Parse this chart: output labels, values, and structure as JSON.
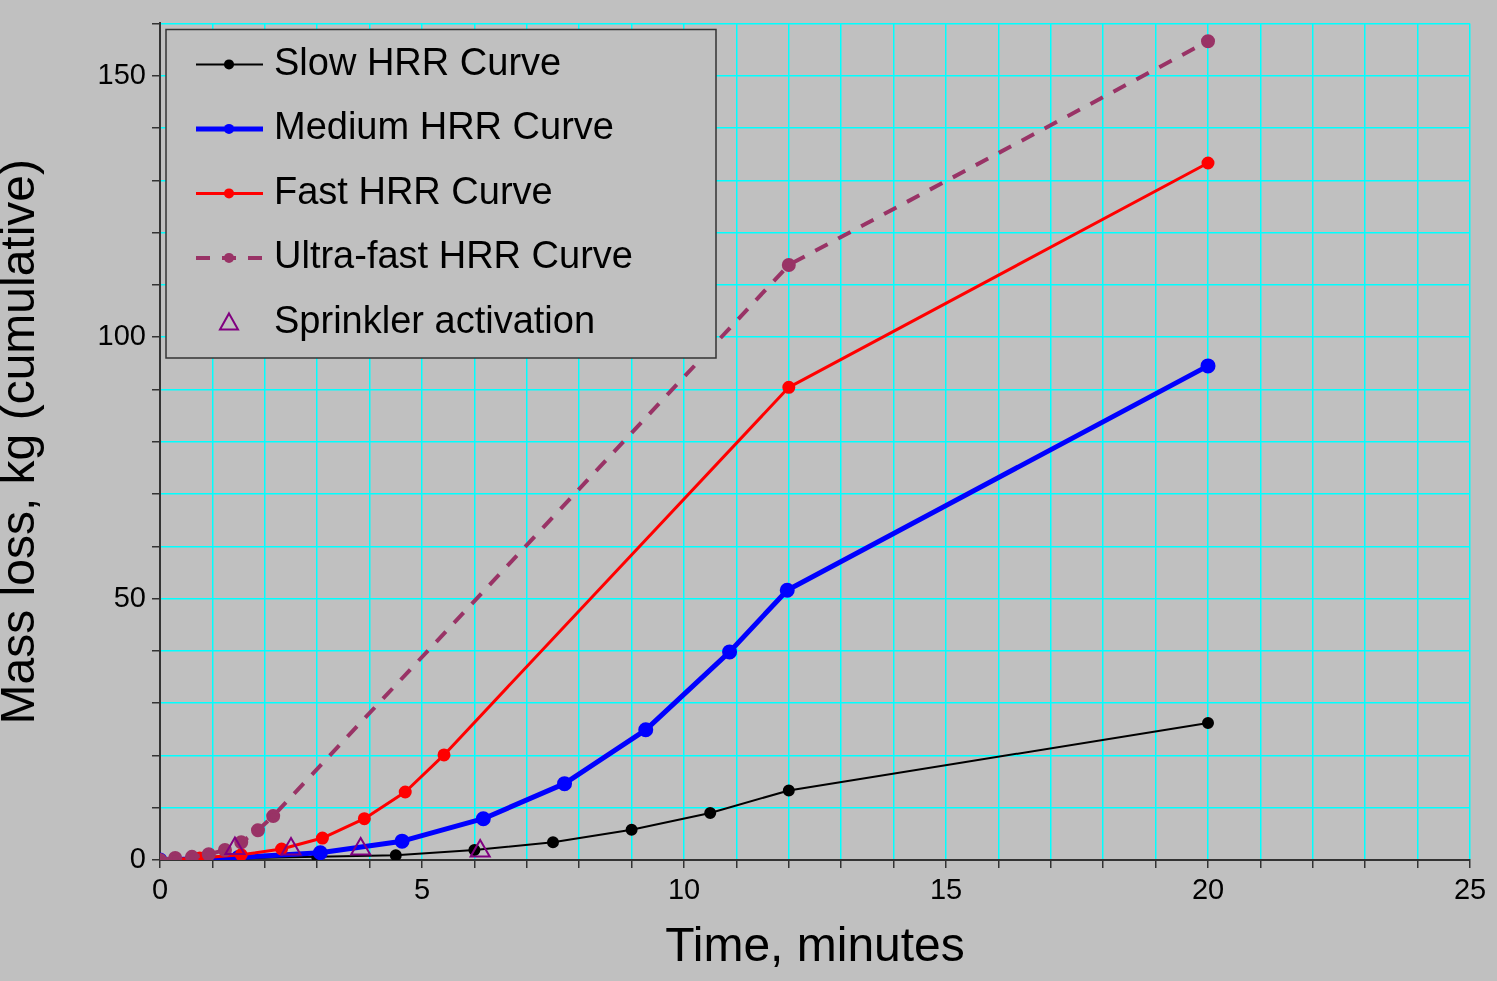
{
  "chart_data": {
    "type": "line",
    "xlabel": "Time, minutes",
    "ylabel": "Mass loss, kg (cumulative)",
    "xlim": [
      0,
      25
    ],
    "ylim": [
      0,
      160
    ],
    "xticks": [
      0,
      {
        "value": 1,
        "label": null
      },
      {
        "value": 2,
        "label": null
      },
      {
        "value": 3,
        "label": null
      },
      {
        "value": 4,
        "label": null
      },
      5,
      {
        "value": 6,
        "label": null
      },
      {
        "value": 7,
        "label": null
      },
      {
        "value": 8,
        "label": null
      },
      {
        "value": 9,
        "label": null
      },
      10,
      {
        "value": 11,
        "label": null
      },
      {
        "value": 12,
        "label": null
      },
      {
        "value": 13,
        "label": null
      },
      {
        "value": 14,
        "label": null
      },
      15,
      {
        "value": 16,
        "label": null
      },
      {
        "value": 17,
        "label": null
      },
      {
        "value": 18,
        "label": null
      },
      {
        "value": 19,
        "label": null
      },
      20,
      {
        "value": 21,
        "label": null
      },
      {
        "value": 22,
        "label": null
      },
      {
        "value": 23,
        "label": null
      },
      {
        "value": 24,
        "label": null
      },
      25
    ],
    "yticks": [
      0,
      {
        "value": 10,
        "label": null
      },
      {
        "value": 20,
        "label": null
      },
      {
        "value": 30,
        "label": null
      },
      {
        "value": 40,
        "label": null
      },
      50,
      {
        "value": 60,
        "label": null
      },
      {
        "value": 70,
        "label": null
      },
      {
        "value": 80,
        "label": null
      },
      {
        "value": 90,
        "label": null
      },
      100,
      {
        "value": 110,
        "label": null
      },
      {
        "value": 120,
        "label": null
      },
      {
        "value": 130,
        "label": null
      },
      {
        "value": 140,
        "label": null
      },
      150,
      {
        "value": 160,
        "label": null
      }
    ],
    "grid": true,
    "legend": "top left",
    "series": [
      {
        "name": "Slow HRR Curve",
        "color": "#000000",
        "marker": "circle",
        "line_style": "solid",
        "x": [
          0,
          1.5,
          3,
          4.5,
          6,
          7.5,
          9,
          10.5,
          12,
          20
        ],
        "values": [
          0,
          0.3,
          0.6,
          0.9,
          1.9,
          3.4,
          5.8,
          9.0,
          13.3,
          26.2
        ]
      },
      {
        "name": "Medium HRR Curve",
        "color": "#0000ff",
        "marker": "circle",
        "line_style": "solid",
        "x": [
          0,
          1.5,
          3.06,
          4.62,
          6.17,
          7.72,
          9.27,
          10.87,
          11.97,
          20
        ],
        "values": [
          0,
          0.5,
          1.4,
          3.6,
          7.9,
          14.6,
          24.9,
          39.8,
          51.6,
          94.5
        ]
      },
      {
        "name": "Fast HRR Curve",
        "color": "#ff0000",
        "marker": "circle",
        "line_style": "solid",
        "x": [
          0,
          0.76,
          1.55,
          2.32,
          3.1,
          3.9,
          4.68,
          5.42,
          12,
          20
        ],
        "values": [
          0,
          0.4,
          1.0,
          2.1,
          4.2,
          7.9,
          13.0,
          20.1,
          90.4,
          133.3
        ]
      },
      {
        "name": "Ultra-fast HRR Curve",
        "color": "#993366",
        "marker": "circle",
        "line_style": "dashed",
        "x": [
          0,
          0.29,
          0.61,
          0.93,
          1.24,
          1.55,
          1.87,
          2.16,
          12,
          20
        ],
        "values": [
          0,
          0.4,
          0.6,
          1.1,
          1.9,
          3.4,
          5.7,
          8.4,
          113.8,
          156.6
        ]
      },
      {
        "name": "Sprinkler activation",
        "type": "scatter",
        "color": "#800080",
        "marker": "triangle",
        "x": [
          1.43,
          2.5,
          3.83,
          6.11
        ],
        "values": [
          2.2,
          2.1,
          2.1,
          1.7
        ]
      }
    ]
  }
}
